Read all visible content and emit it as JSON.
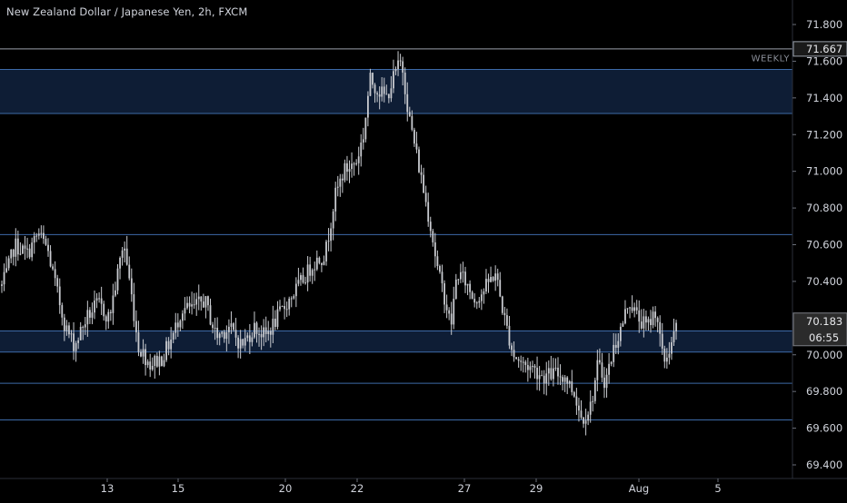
{
  "header": {
    "title": "New Zealand Dollar / Japanese Yen, 2h, FXCM"
  },
  "colors": {
    "background": "#000000",
    "candle": "#c9cbd0",
    "level_line": "#3d6aa8",
    "zone_fill": "#0e1d35",
    "axis_text": "#d1d4dc",
    "price_tag_bg": "#2b2b2b"
  },
  "chart_data": {
    "type": "candlestick",
    "symbol": "NZDJPY",
    "timeframe": "2h",
    "source": "FXCM",
    "y_axis": {
      "ticks": [
        "71.800",
        "71.600",
        "71.400",
        "71.200",
        "71.000",
        "70.800",
        "70.600",
        "70.400",
        "70.000",
        "69.800",
        "69.600",
        "69.400"
      ],
      "range": [
        69.35,
        71.85
      ]
    },
    "x_axis": {
      "ticks": [
        "13",
        "15",
        "20",
        "22",
        "27",
        "29",
        "Aug",
        "5"
      ]
    },
    "price_tags": {
      "high_label": "71.667",
      "last_price": "70.183",
      "countdown": "06:55"
    },
    "horizontal_levels": [
      71.667,
      70.655,
      69.845,
      69.645
    ],
    "zones": [
      {
        "label": "WEEKLY",
        "from": 71.315,
        "to": 71.555
      },
      {
        "label": "",
        "from": 70.015,
        "to": 70.13
      }
    ],
    "anchors": [
      [
        0,
        70.35
      ],
      [
        8,
        70.45
      ],
      [
        16,
        70.6
      ],
      [
        30,
        70.55
      ],
      [
        42,
        70.66
      ],
      [
        52,
        70.58
      ],
      [
        60,
        70.4
      ],
      [
        72,
        70.15
      ],
      [
        82,
        70.05
      ],
      [
        95,
        70.2
      ],
      [
        108,
        70.28
      ],
      [
        120,
        70.2
      ],
      [
        128,
        70.4
      ],
      [
        136,
        70.62
      ],
      [
        144,
        70.35
      ],
      [
        152,
        70.05
      ],
      [
        165,
        69.95
      ],
      [
        178,
        69.98
      ],
      [
        190,
        70.1
      ],
      [
        200,
        70.25
      ],
      [
        212,
        70.25
      ],
      [
        225,
        70.3
      ],
      [
        238,
        70.1
      ],
      [
        252,
        70.15
      ],
      [
        266,
        70.05
      ],
      [
        280,
        70.15
      ],
      [
        292,
        70.1
      ],
      [
        305,
        70.2
      ],
      [
        318,
        70.3
      ],
      [
        332,
        70.4
      ],
      [
        345,
        70.5
      ],
      [
        358,
        70.55
      ],
      [
        368,
        70.85
      ],
      [
        378,
        71.0
      ],
      [
        392,
        71.05
      ],
      [
        400,
        71.2
      ],
      [
        407,
        71.5
      ],
      [
        415,
        71.45
      ],
      [
        425,
        71.4
      ],
      [
        436,
        71.55
      ],
      [
        442,
        71.6
      ],
      [
        450,
        71.3
      ],
      [
        458,
        71.1
      ],
      [
        466,
        70.9
      ],
      [
        474,
        70.7
      ],
      [
        482,
        70.45
      ],
      [
        490,
        70.3
      ],
      [
        496,
        70.15
      ],
      [
        503,
        70.45
      ],
      [
        512,
        70.4
      ],
      [
        522,
        70.3
      ],
      [
        532,
        70.35
      ],
      [
        545,
        70.45
      ],
      [
        555,
        70.2
      ],
      [
        565,
        70.0
      ],
      [
        575,
        69.95
      ],
      [
        586,
        69.93
      ],
      [
        598,
        69.88
      ],
      [
        610,
        69.9
      ],
      [
        622,
        69.88
      ],
      [
        633,
        69.78
      ],
      [
        640,
        69.65
      ],
      [
        650,
        69.72
      ],
      [
        658,
        69.95
      ],
      [
        666,
        69.85
      ],
      [
        676,
        70.05
      ],
      [
        684,
        70.15
      ],
      [
        692,
        70.3
      ],
      [
        702,
        70.2
      ],
      [
        712,
        70.15
      ],
      [
        722,
        70.25
      ],
      [
        730,
        69.95
      ],
      [
        738,
        70.05
      ],
      [
        746,
        70.18
      ]
    ]
  }
}
